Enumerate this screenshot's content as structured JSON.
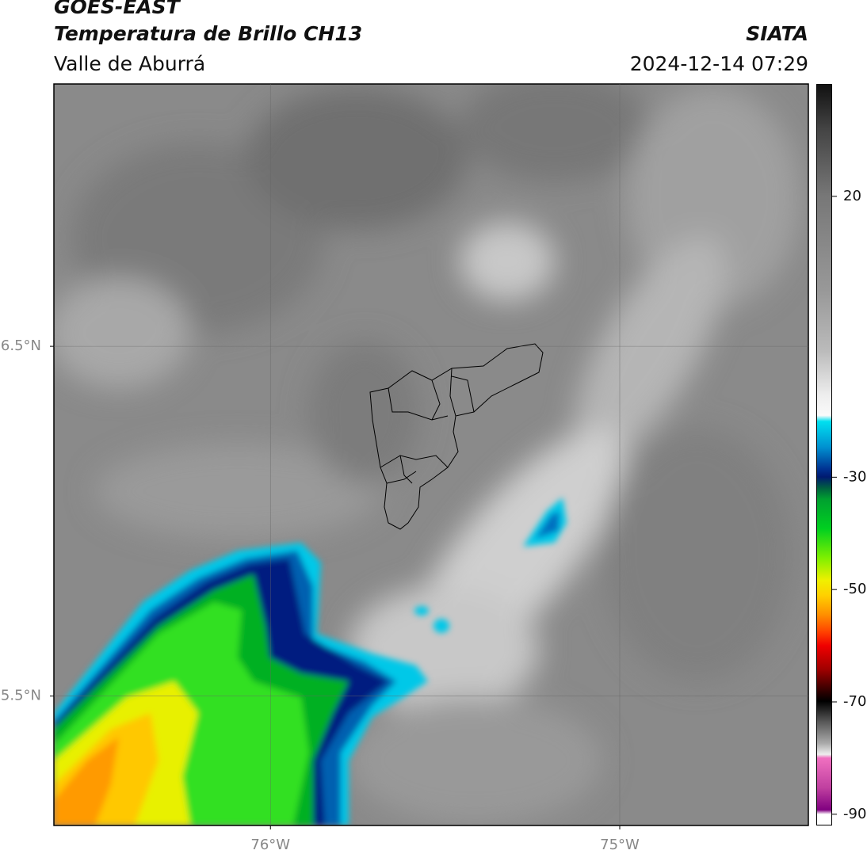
{
  "header": {
    "title": "GOES-EAST",
    "subtitle": "Temperatura de Brillo CH13",
    "region": "Valle de Aburrá",
    "source": "SIATA",
    "timestamp": "2024-12-14 07:29"
  },
  "map": {
    "xlim": [
      -76.62,
      -74.46
    ],
    "ylim": [
      5.13,
      7.25
    ],
    "xticks": [
      {
        "value": -76,
        "label": "76°W"
      },
      {
        "value": -75,
        "label": "75°W"
      }
    ],
    "yticks": [
      {
        "value": 6.5,
        "label": "6.5°N"
      },
      {
        "value": 5.5,
        "label": "5.5°N"
      }
    ],
    "grid": true
  },
  "colorbar": {
    "lim": [
      -92,
      40
    ],
    "ticks": [
      20,
      -30,
      -50,
      -70,
      -90
    ]
  }
}
